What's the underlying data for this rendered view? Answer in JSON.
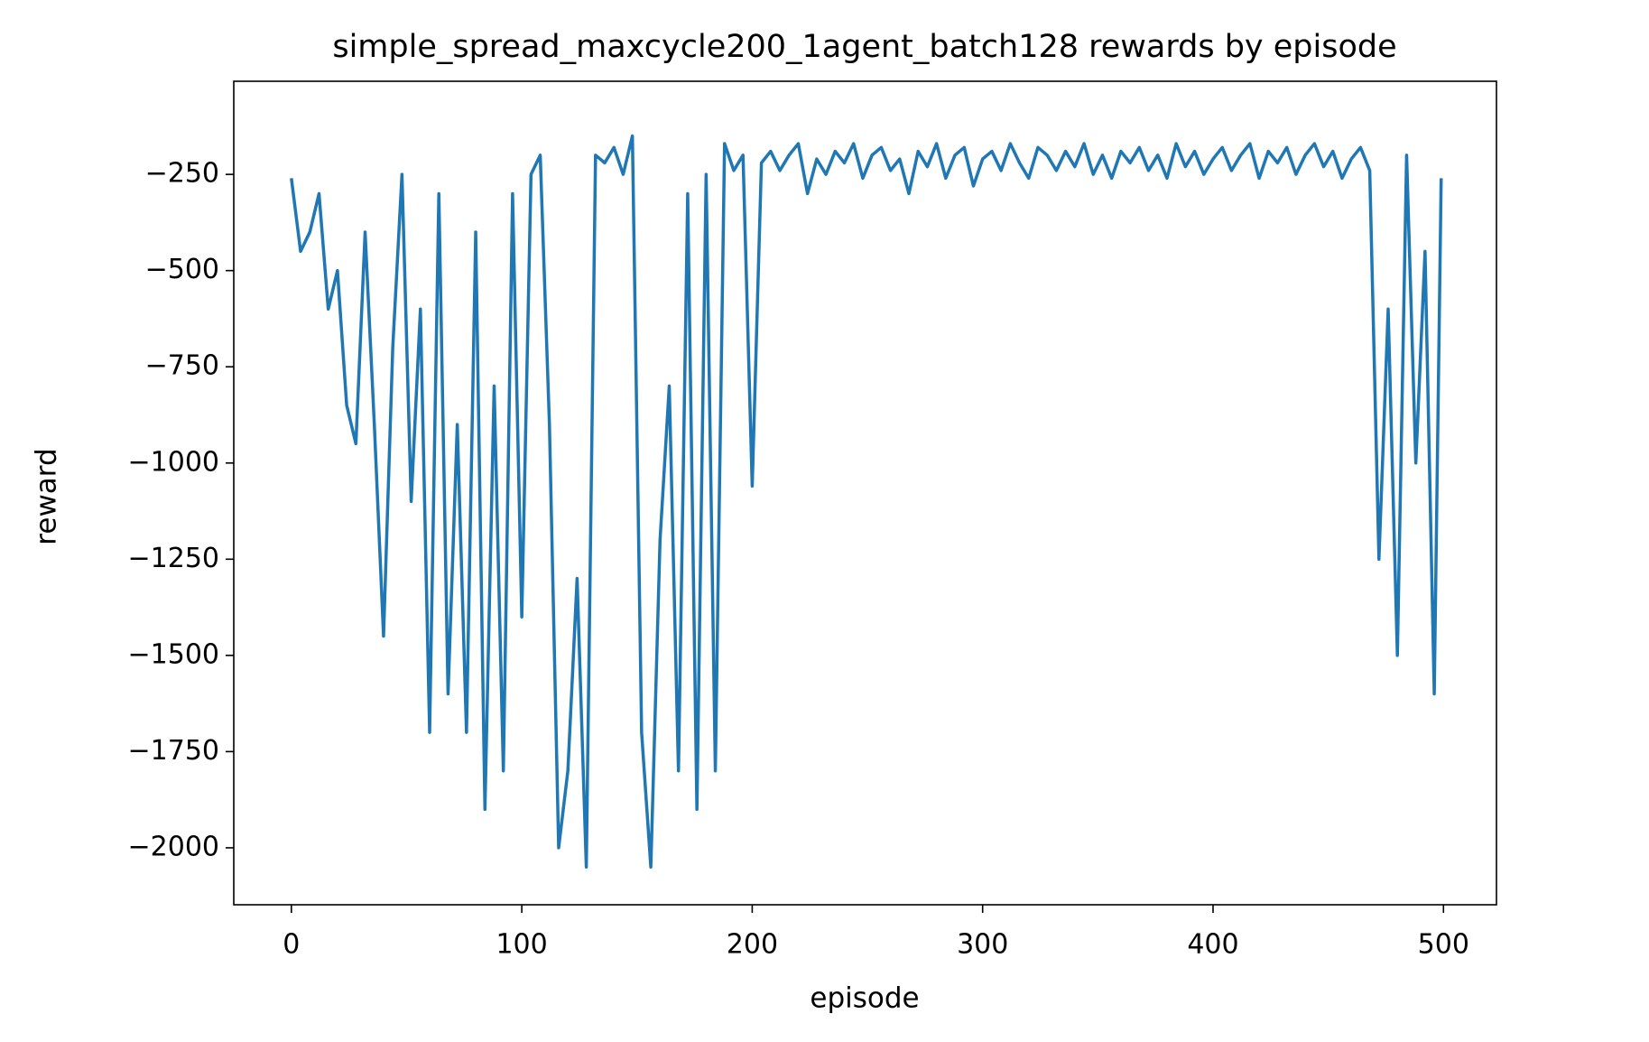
{
  "chart_data": {
    "type": "line",
    "title": "simple_spread_maxcycle200_1agent_batch128 rewards by episode",
    "x_label": "episode",
    "y_label": "reward",
    "xlim": [
      -25,
      523
    ],
    "ylim": [
      -2148,
      -8
    ],
    "xticks": [
      0,
      100,
      200,
      300,
      400,
      500
    ],
    "yticks": [
      {
        "value": -250,
        "label": "−250"
      },
      {
        "value": -500,
        "label": "−500"
      },
      {
        "value": -750,
        "label": "−750"
      },
      {
        "value": -1000,
        "label": "−1000"
      },
      {
        "value": -1250,
        "label": "−1250"
      },
      {
        "value": -1500,
        "label": "−1500"
      },
      {
        "value": -1750,
        "label": "−1750"
      },
      {
        "value": -2000,
        "label": "−2000"
      }
    ],
    "grid": false,
    "series": [
      {
        "name": "reward",
        "color": "#1f77b4",
        "x": [
          0,
          4,
          8,
          12,
          16,
          20,
          24,
          28,
          32,
          36,
          40,
          44,
          48,
          52,
          56,
          60,
          64,
          68,
          72,
          76,
          80,
          84,
          88,
          92,
          96,
          100,
          104,
          108,
          112,
          116,
          120,
          124,
          128,
          132,
          136,
          140,
          144,
          148,
          152,
          156,
          160,
          164,
          168,
          172,
          176,
          180,
          184,
          188,
          192,
          196,
          200,
          204,
          208,
          212,
          216,
          220,
          224,
          228,
          232,
          236,
          240,
          244,
          248,
          252,
          256,
          260,
          264,
          268,
          272,
          276,
          280,
          284,
          288,
          292,
          296,
          300,
          304,
          308,
          312,
          316,
          320,
          324,
          328,
          332,
          336,
          340,
          344,
          348,
          352,
          356,
          360,
          364,
          368,
          372,
          376,
          380,
          384,
          388,
          392,
          396,
          400,
          404,
          408,
          412,
          416,
          420,
          424,
          428,
          432,
          436,
          440,
          444,
          448,
          452,
          456,
          460,
          464,
          468,
          472,
          476,
          480,
          484,
          488,
          492,
          496,
          499
        ],
        "values": [
          -260,
          -450,
          -400,
          -300,
          -600,
          -500,
          -850,
          -950,
          -400,
          -900,
          -1450,
          -700,
          -250,
          -1100,
          -600,
          -1700,
          -300,
          -1600,
          -900,
          -1700,
          -400,
          -1900,
          -800,
          -1800,
          -300,
          -1400,
          -250,
          -200,
          -900,
          -2000,
          -1800,
          -1300,
          -2050,
          -200,
          -220,
          -180,
          -250,
          -150,
          -1700,
          -2050,
          -1200,
          -800,
          -1800,
          -300,
          -1900,
          -250,
          -1800,
          -170,
          -240,
          -200,
          -1060,
          -220,
          -190,
          -240,
          -200,
          -170,
          -300,
          -210,
          -250,
          -190,
          -220,
          -170,
          -260,
          -200,
          -180,
          -240,
          -210,
          -300,
          -190,
          -230,
          -170,
          -260,
          -200,
          -180,
          -280,
          -210,
          -190,
          -240,
          -170,
          -220,
          -260,
          -180,
          -200,
          -240,
          -190,
          -230,
          -170,
          -250,
          -200,
          -260,
          -190,
          -220,
          -180,
          -240,
          -200,
          -260,
          -170,
          -230,
          -190,
          -250,
          -210,
          -180,
          -240,
          -200,
          -170,
          -260,
          -190,
          -220,
          -180,
          -250,
          -200,
          -170,
          -230,
          -190,
          -260,
          -210,
          -180,
          -240,
          -1250,
          -600,
          -1500,
          -200,
          -1000,
          -450,
          -1600,
          -260
        ]
      }
    ]
  }
}
